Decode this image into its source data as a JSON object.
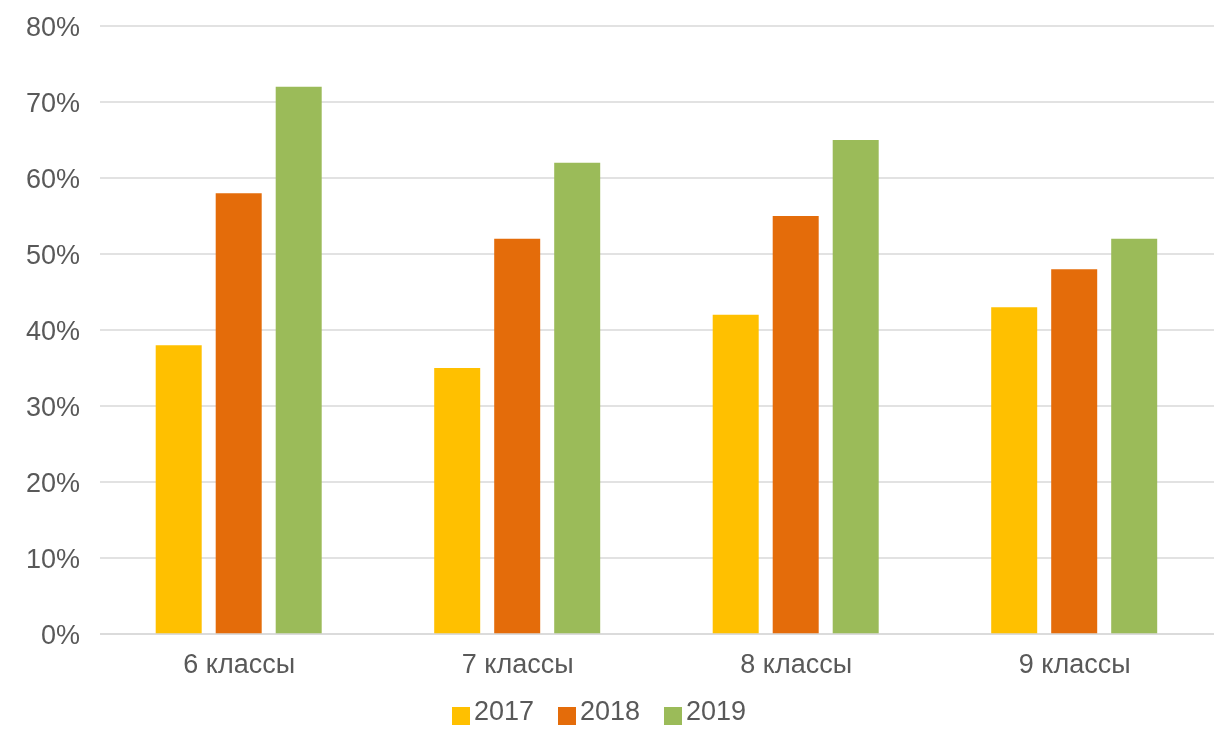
{
  "chart_data": {
    "type": "bar",
    "categories": [
      "6 классы",
      "7 классы",
      "8 классы",
      "9 классы"
    ],
    "series": [
      {
        "name": "2017",
        "color": "#ffc000",
        "values": [
          38,
          35,
          42,
          43
        ]
      },
      {
        "name": "2018",
        "color": "#e46c0a",
        "values": [
          58,
          52,
          55,
          48
        ]
      },
      {
        "name": "2019",
        "color": "#9bbb59",
        "values": [
          72,
          62,
          65,
          52
        ]
      }
    ],
    "ylim": [
      0,
      80
    ],
    "yticks": [
      {
        "value": 0,
        "label": "0%"
      },
      {
        "value": 10,
        "label": "10%"
      },
      {
        "value": 20,
        "label": "20%"
      },
      {
        "value": 30,
        "label": "30%"
      },
      {
        "value": 40,
        "label": "40%"
      },
      {
        "value": 50,
        "label": "50%"
      },
      {
        "value": 60,
        "label": "60%"
      },
      {
        "value": 70,
        "label": "70%"
      },
      {
        "value": 80,
        "label": "80%"
      }
    ],
    "grid": "y",
    "legend": "bottom"
  }
}
